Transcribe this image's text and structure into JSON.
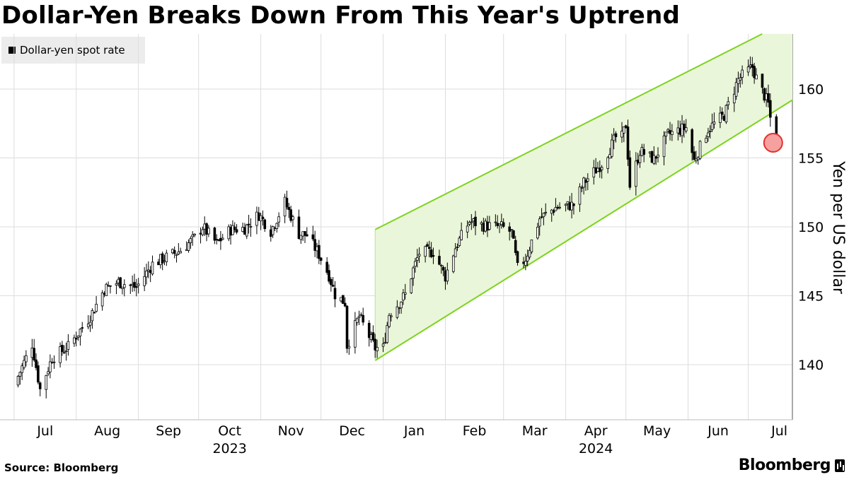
{
  "chart_data": {
    "type": "candlestick",
    "title": "Dollar-Yen Breaks Down From This Year's Uptrend",
    "series_name": "Dollar-yen spot rate",
    "ylabel": "Yen per US dollar",
    "ylim": [
      136,
      164
    ],
    "yticks": [
      140,
      145,
      150,
      155,
      160
    ],
    "month_ticks": [
      "Jul",
      "Aug",
      "Sep",
      "Oct",
      "Nov",
      "Dec",
      "Jan",
      "Feb",
      "Mar",
      "Apr",
      "May",
      "Jun",
      "Jul"
    ],
    "year_labels": [
      {
        "label": "2023",
        "after_month_index": 3
      },
      {
        "label": "2024",
        "after_month_index": 9
      }
    ],
    "trend_channel": {
      "start": "2023-12-28",
      "end": "2024-07-12",
      "upper_start": 149.8,
      "upper_end": 164.3,
      "lower_start": 140.3,
      "lower_end": 158.2
    },
    "highlight": {
      "date": "2024-07-12",
      "value": 156.0
    },
    "anchors": [
      [
        "2023-07-01",
        138.5
      ],
      [
        "2023-07-10",
        141.5
      ],
      [
        "2023-07-14",
        138.2
      ],
      [
        "2023-07-20",
        140.5
      ],
      [
        "2023-07-28",
        141.3
      ],
      [
        "2023-08-08",
        143.5
      ],
      [
        "2023-08-15",
        145.5
      ],
      [
        "2023-08-22",
        146.0
      ],
      [
        "2023-08-31",
        145.6
      ],
      [
        "2023-09-08",
        147.3
      ],
      [
        "2023-09-15",
        147.8
      ],
      [
        "2023-09-22",
        148.3
      ],
      [
        "2023-09-29",
        149.2
      ],
      [
        "2023-10-03",
        150.0
      ],
      [
        "2023-10-10",
        148.8
      ],
      [
        "2023-10-17",
        149.8
      ],
      [
        "2023-10-24",
        149.9
      ],
      [
        "2023-10-31",
        150.9
      ],
      [
        "2023-11-06",
        149.7
      ],
      [
        "2023-11-13",
        151.8
      ],
      [
        "2023-11-20",
        149.5
      ],
      [
        "2023-11-24",
        149.4
      ],
      [
        "2023-11-30",
        148.0
      ],
      [
        "2023-12-05",
        146.5
      ],
      [
        "2023-12-08",
        145.1
      ],
      [
        "2023-12-13",
        144.5
      ],
      [
        "2023-12-14",
        141.4
      ],
      [
        "2023-12-20",
        143.5
      ],
      [
        "2023-12-28",
        141.2
      ],
      [
        "2024-01-01",
        141.2
      ],
      [
        "2024-01-04",
        143.7
      ],
      [
        "2024-01-09",
        144.5
      ],
      [
        "2024-01-12",
        145.1
      ],
      [
        "2024-01-16",
        146.9
      ],
      [
        "2024-01-19",
        148.1
      ],
      [
        "2024-01-26",
        148.2
      ],
      [
        "2024-02-01",
        146.4
      ],
      [
        "2024-02-06",
        148.5
      ],
      [
        "2024-02-13",
        150.4
      ],
      [
        "2024-02-20",
        150.1
      ],
      [
        "2024-02-29",
        150.0
      ],
      [
        "2024-03-05",
        149.6
      ],
      [
        "2024-03-08",
        147.0
      ],
      [
        "2024-03-12",
        147.7
      ],
      [
        "2024-03-19",
        150.6
      ],
      [
        "2024-03-27",
        151.4
      ],
      [
        "2024-04-05",
        151.6
      ],
      [
        "2024-04-10",
        153.2
      ],
      [
        "2024-04-19",
        154.6
      ],
      [
        "2024-04-26",
        156.5
      ],
      [
        "2024-04-29",
        156.5
      ],
      [
        "2024-05-01",
        157.4
      ],
      [
        "2024-05-03",
        153.0
      ],
      [
        "2024-05-08",
        155.5
      ],
      [
        "2024-05-15",
        154.9
      ],
      [
        "2024-05-22",
        156.7
      ],
      [
        "2024-05-31",
        157.2
      ],
      [
        "2024-06-04",
        154.8
      ],
      [
        "2024-06-11",
        157.1
      ],
      [
        "2024-06-19",
        158.1
      ],
      [
        "2024-06-26",
        160.7
      ],
      [
        "2024-07-03",
        161.6
      ],
      [
        "2024-07-05",
        160.8
      ],
      [
        "2024-07-11",
        158.9
      ],
      [
        "2024-07-12",
        157.9
      ],
      [
        "2024-07-15",
        156.1
      ]
    ]
  },
  "source_text": "Source: Bloomberg",
  "brand_text": "Bloomberg"
}
